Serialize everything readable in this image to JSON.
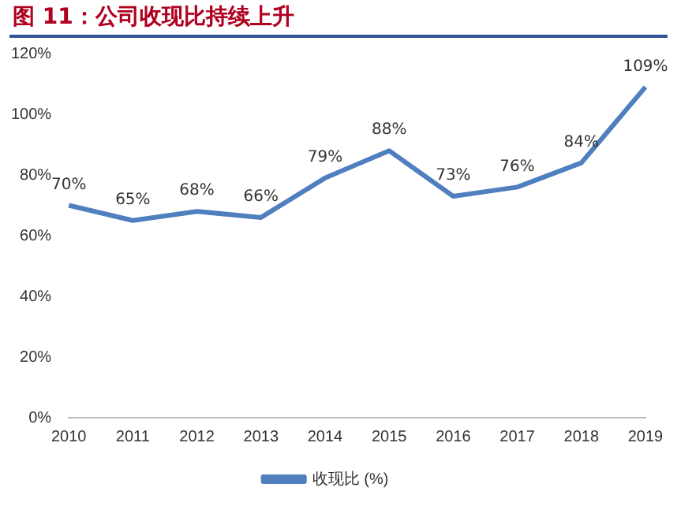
{
  "chart_data": {
    "type": "line",
    "title": "图 11：公司收现比持续上升",
    "categories": [
      "2010",
      "2011",
      "2012",
      "2013",
      "2014",
      "2015",
      "2016",
      "2017",
      "2018",
      "2019"
    ],
    "series": [
      {
        "name": "收现比 (%)",
        "color": "#4f7fbf",
        "values": [
          70,
          65,
          68,
          66,
          79,
          88,
          73,
          76,
          84,
          109
        ],
        "value_labels": [
          "70%",
          "65%",
          "68%",
          "66%",
          "79%",
          "88%",
          "73%",
          "76%",
          "84%",
          "109%"
        ]
      }
    ],
    "ylim": [
      0,
      120
    ],
    "yticks": [
      {
        "value": 0,
        "label": "0%"
      },
      {
        "value": 20,
        "label": "20%"
      },
      {
        "value": 40,
        "label": "40%"
      },
      {
        "value": 60,
        "label": "60%"
      },
      {
        "value": 80,
        "label": "80%"
      },
      {
        "value": 100,
        "label": "100%"
      },
      {
        "value": 120,
        "label": "120%"
      }
    ],
    "grid": false,
    "legend": "bottom",
    "marker": "none",
    "line_style": "solid"
  }
}
